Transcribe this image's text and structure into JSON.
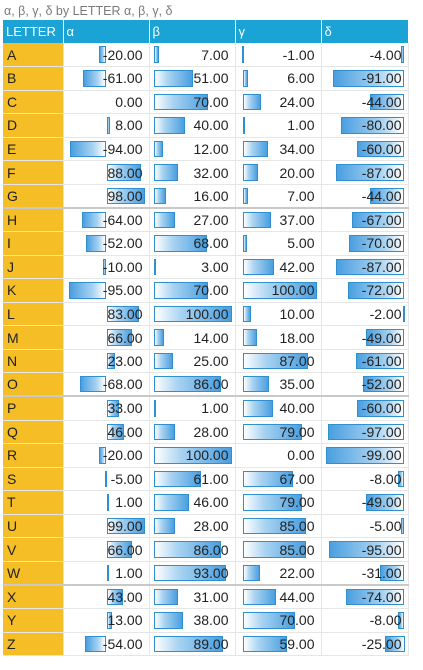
{
  "caption": "α, β, γ, δ by LETTER α, β, γ, δ",
  "columns": [
    "LETTER",
    "α",
    "β",
    "γ",
    "δ"
  ],
  "colors": {
    "header_bg": "#1ba3d6",
    "letter_bg": "#f5be26",
    "bar_fill": "#4a9fe0",
    "bar_border": "#2f8fcf"
  },
  "scale": {
    "alpha": [
      -100,
      100
    ],
    "beta": [
      0,
      100
    ],
    "gamma": [
      -5,
      100
    ],
    "delta": [
      -100,
      0
    ]
  },
  "rows": [
    {
      "letter": "A",
      "alpha": "-20.00",
      "beta": "7.00",
      "gamma": "-1.00",
      "delta": "-4.00"
    },
    {
      "letter": "B",
      "alpha": "-61.00",
      "beta": "51.00",
      "gamma": "6.00",
      "delta": "-91.00"
    },
    {
      "letter": "C",
      "alpha": "0.00",
      "beta": "70.00",
      "gamma": "24.00",
      "delta": "-44.00"
    },
    {
      "letter": "D",
      "alpha": "8.00",
      "beta": "40.00",
      "gamma": "1.00",
      "delta": "-80.00"
    },
    {
      "letter": "E",
      "alpha": "-94.00",
      "beta": "12.00",
      "gamma": "34.00",
      "delta": "-60.00"
    },
    {
      "letter": "F",
      "alpha": "88.00",
      "beta": "32.00",
      "gamma": "20.00",
      "delta": "-87.00"
    },
    {
      "letter": "G",
      "alpha": "98.00",
      "beta": "16.00",
      "gamma": "7.00",
      "delta": "-44.00"
    },
    {
      "letter": "H",
      "alpha": "-64.00",
      "beta": "27.00",
      "gamma": "37.00",
      "delta": "-67.00"
    },
    {
      "letter": "I",
      "alpha": "-52.00",
      "beta": "68.00",
      "gamma": "5.00",
      "delta": "-70.00"
    },
    {
      "letter": "J",
      "alpha": "-10.00",
      "beta": "3.00",
      "gamma": "42.00",
      "delta": "-87.00"
    },
    {
      "letter": "K",
      "alpha": "-95.00",
      "beta": "70.00",
      "gamma": "100.00",
      "delta": "-72.00"
    },
    {
      "letter": "L",
      "alpha": "83.00",
      "beta": "100.00",
      "gamma": "10.00",
      "delta": "-2.00"
    },
    {
      "letter": "M",
      "alpha": "66.00",
      "beta": "14.00",
      "gamma": "18.00",
      "delta": "-49.00"
    },
    {
      "letter": "N",
      "alpha": "23.00",
      "beta": "25.00",
      "gamma": "87.00",
      "delta": "-61.00"
    },
    {
      "letter": "O",
      "alpha": "-68.00",
      "beta": "86.00",
      "gamma": "35.00",
      "delta": "-52.00"
    },
    {
      "letter": "P",
      "alpha": "33.00",
      "beta": "1.00",
      "gamma": "40.00",
      "delta": "-60.00"
    },
    {
      "letter": "Q",
      "alpha": "46.00",
      "beta": "28.00",
      "gamma": "79.00",
      "delta": "-97.00"
    },
    {
      "letter": "R",
      "alpha": "-20.00",
      "beta": "100.00",
      "gamma": "0.00",
      "delta": "-99.00"
    },
    {
      "letter": "S",
      "alpha": "-5.00",
      "beta": "61.00",
      "gamma": "67.00",
      "delta": "-8.00"
    },
    {
      "letter": "T",
      "alpha": "1.00",
      "beta": "46.00",
      "gamma": "79.00",
      "delta": "-49.00"
    },
    {
      "letter": "U",
      "alpha": "99.00",
      "beta": "28.00",
      "gamma": "85.00",
      "delta": "-5.00"
    },
    {
      "letter": "V",
      "alpha": "66.00",
      "beta": "86.00",
      "gamma": "85.00",
      "delta": "-95.00"
    },
    {
      "letter": "W",
      "alpha": "1.00",
      "beta": "93.00",
      "gamma": "22.00",
      "delta": "-31.00"
    },
    {
      "letter": "X",
      "alpha": "43.00",
      "beta": "31.00",
      "gamma": "44.00",
      "delta": "-74.00"
    },
    {
      "letter": "Y",
      "alpha": "13.00",
      "beta": "38.00",
      "gamma": "70.00",
      "delta": "-8.00"
    },
    {
      "letter": "Z",
      "alpha": "-54.00",
      "beta": "89.00",
      "gamma": "59.00",
      "delta": "-25.00"
    }
  ]
}
